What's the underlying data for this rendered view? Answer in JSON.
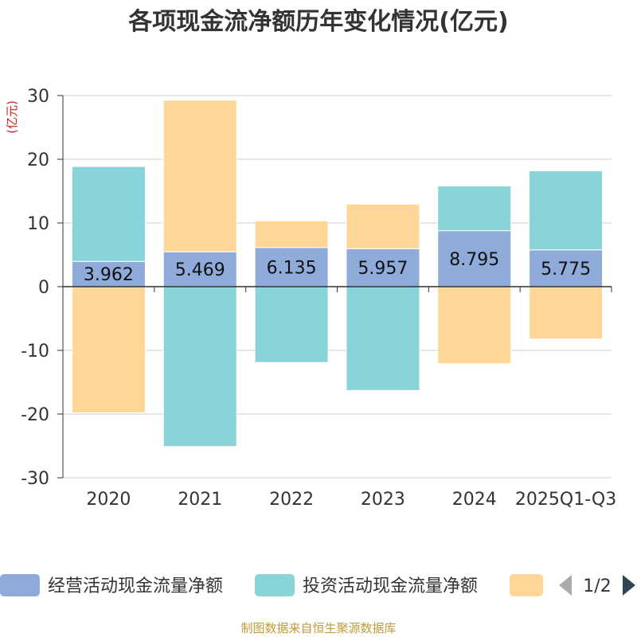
{
  "chart_data": {
    "type": "bar",
    "stacked": true,
    "title": "各项现金流净额历年变化情况(亿元)",
    "ylabel": "(亿元)",
    "ylim": [
      -30,
      30
    ],
    "yticks": [
      "30",
      "20",
      "10",
      "0",
      "-10",
      "-20",
      "-30"
    ],
    "ytick_values": [
      30,
      20,
      10,
      0,
      -10,
      -20,
      -30
    ],
    "categories": [
      "2020",
      "2021",
      "2022",
      "2023",
      "2024",
      "2025Q1-Q3"
    ],
    "grid": true,
    "legend_position": "bottom",
    "series": [
      {
        "name": "经营活动现金流量净额",
        "color": "#8eabd9",
        "values": [
          3.962,
          5.469,
          6.135,
          5.957,
          8.795,
          5.775
        ],
        "labels": [
          "3.962",
          "5.469",
          "6.135",
          "5.957",
          "8.795",
          "5.775"
        ]
      },
      {
        "name": "投资活动现金流量净额",
        "color": "#88d4d8",
        "values": [
          14.9,
          -25.1,
          -11.9,
          -16.3,
          7.0,
          12.4
        ]
      },
      {
        "color": "#fed798",
        "values": [
          -19.8,
          23.8,
          4.2,
          7.0,
          -12.1,
          -8.2
        ]
      }
    ]
  },
  "legend": {
    "page": "1/2"
  },
  "footer": {
    "source": "制图数据来自恒生聚源数据库"
  }
}
